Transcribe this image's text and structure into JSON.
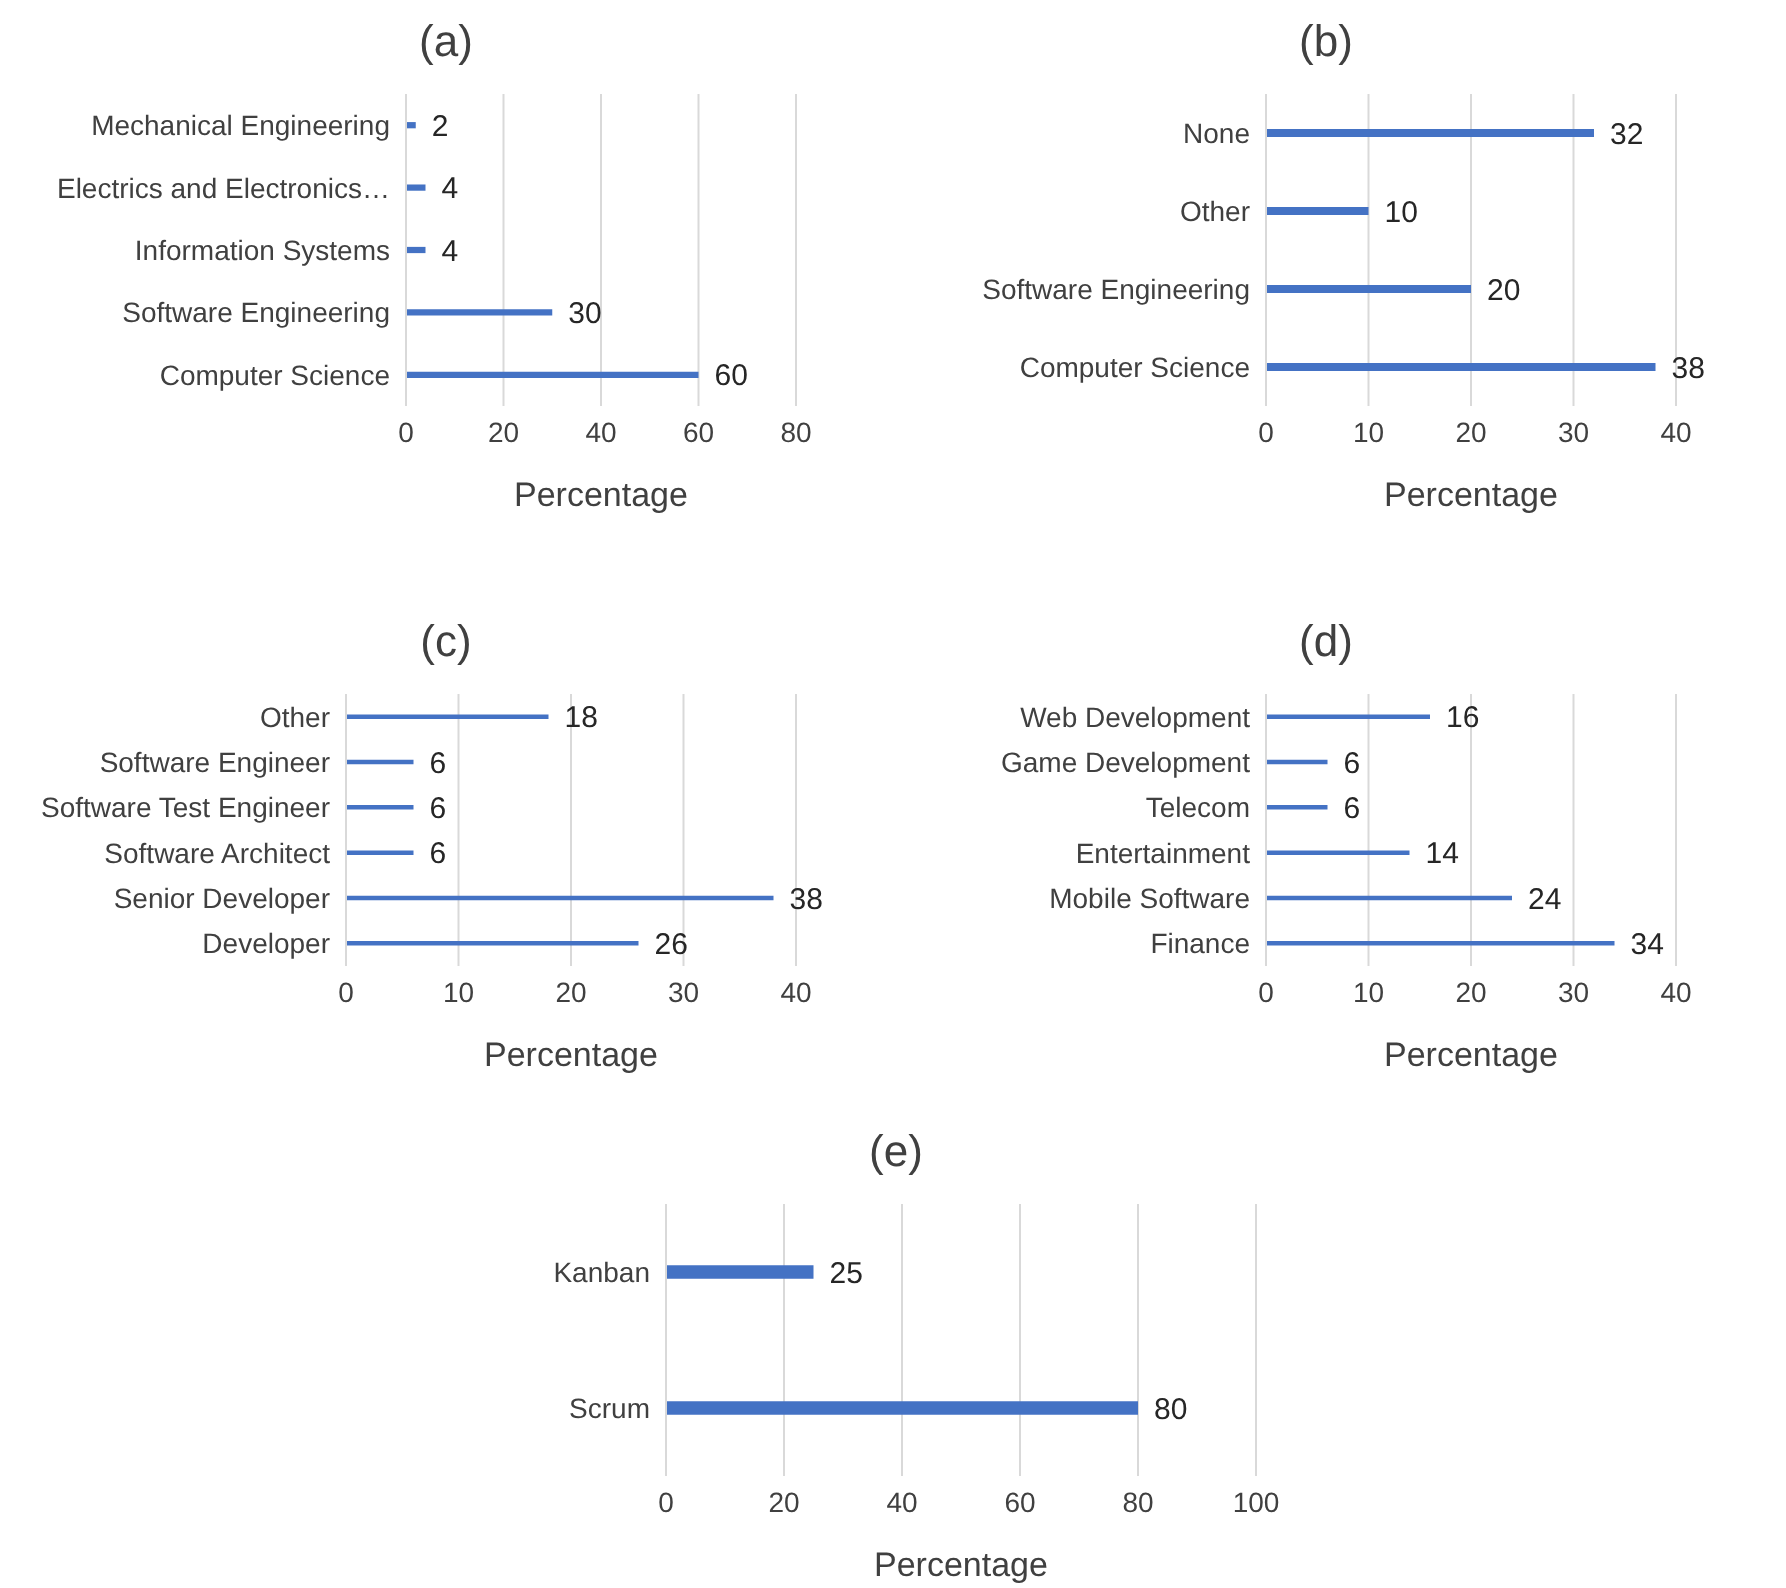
{
  "chart_data": [
    {
      "type": "bar",
      "orientation": "horizontal",
      "title": "(a)",
      "xlabel": "Percentage",
      "categories": [
        "Mechanical Engineering",
        "Electrics and Electronics…",
        "Information Systems",
        "Software Engineering",
        "Computer Science"
      ],
      "values": [
        2,
        4,
        4,
        30,
        60
      ],
      "color": "#4472c4",
      "xlim": [
        0,
        80
      ],
      "xticks": [
        0,
        20,
        40,
        60,
        80
      ],
      "grid": "x",
      "data_labels": true
    },
    {
      "type": "bar",
      "orientation": "horizontal",
      "title": "(b)",
      "xlabel": "Percentage",
      "categories": [
        "None",
        "Other",
        "Software Engineering",
        "Computer Science"
      ],
      "values": [
        32,
        10,
        20,
        38
      ],
      "color": "#4472c4",
      "xlim": [
        0,
        40
      ],
      "xticks": [
        0,
        10,
        20,
        30,
        40
      ],
      "grid": "x",
      "data_labels": true
    },
    {
      "type": "bar",
      "orientation": "horizontal",
      "title": "(c)",
      "xlabel": "Percentage",
      "categories": [
        "Other",
        "Software Engineer",
        "Software Test Engineer",
        "Software Architect",
        "Senior Developer",
        "Developer"
      ],
      "values": [
        18,
        6,
        6,
        6,
        38,
        26
      ],
      "color": "#4472c4",
      "xlim": [
        0,
        40
      ],
      "xticks": [
        0,
        10,
        20,
        30,
        40
      ],
      "grid": "x",
      "data_labels": true
    },
    {
      "type": "bar",
      "orientation": "horizontal",
      "title": "(d)",
      "xlabel": "Percentage",
      "categories": [
        "Web Development",
        "Game Development",
        "Telecom",
        "Entertainment",
        "Mobile Software",
        "Finance"
      ],
      "values": [
        16,
        6,
        6,
        14,
        24,
        34
      ],
      "color": "#4472c4",
      "xlim": [
        0,
        40
      ],
      "xticks": [
        0,
        10,
        20,
        30,
        40
      ],
      "grid": "x",
      "data_labels": true
    },
    {
      "type": "bar",
      "orientation": "horizontal",
      "title": "(e)",
      "xlabel": "Percentage",
      "categories": [
        "Kanban",
        "Scrum"
      ],
      "values": [
        25,
        80
      ],
      "color": "#4472c4",
      "xlim": [
        0,
        100
      ],
      "xticks": [
        0,
        20,
        40,
        60,
        80,
        100
      ],
      "grid": "x",
      "data_labels": true
    }
  ]
}
